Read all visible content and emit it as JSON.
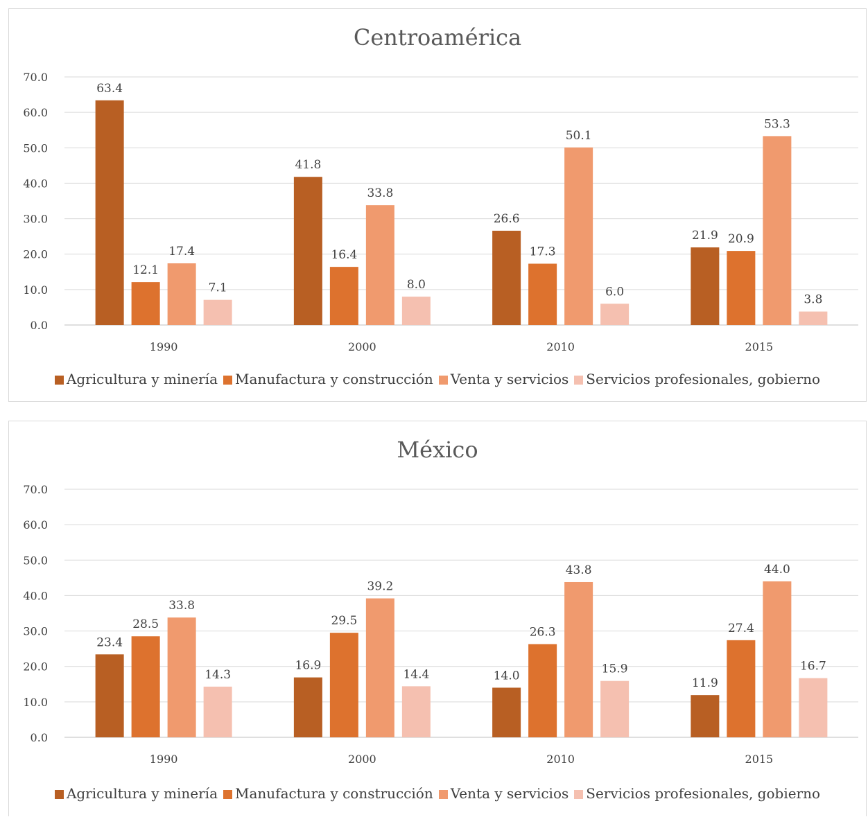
{
  "chart_data": [
    {
      "type": "bar",
      "title": "Centroamérica",
      "categories": [
        "1990",
        "2000",
        "2010",
        "2015"
      ],
      "series": [
        {
          "name": "Agricultura y minería",
          "color": "#b85f23",
          "values": [
            63.4,
            41.8,
            26.6,
            21.9
          ]
        },
        {
          "name": "Manufactura y construcción",
          "color": "#dd722e",
          "values": [
            12.1,
            16.4,
            17.3,
            20.9
          ]
        },
        {
          "name": "Venta y servicios",
          "color": "#f09a6e",
          "values": [
            17.4,
            33.8,
            50.1,
            53.3
          ]
        },
        {
          "name": "Servicios profesionales, gobierno",
          "color": "#f5c0b0",
          "values": [
            7.1,
            8.0,
            6.0,
            3.8
          ]
        }
      ],
      "y_ticks": [
        "0.0",
        "10.0",
        "20.0",
        "30.0",
        "40.0",
        "50.0",
        "60.0",
        "70.0"
      ],
      "ylim": [
        0,
        70
      ],
      "grid": true,
      "legend": "bottom"
    },
    {
      "type": "bar",
      "title": "México",
      "categories": [
        "1990",
        "2000",
        "2010",
        "2015"
      ],
      "series": [
        {
          "name": "Agricultura y minería",
          "color": "#b85f23",
          "values": [
            23.4,
            16.9,
            14.0,
            11.9
          ]
        },
        {
          "name": "Manufactura y construcción",
          "color": "#dd722e",
          "values": [
            28.5,
            29.5,
            26.3,
            27.4
          ]
        },
        {
          "name": "Venta y servicios",
          "color": "#f09a6e",
          "values": [
            33.8,
            39.2,
            43.8,
            44.0
          ]
        },
        {
          "name": "Servicios profesionales, gobierno",
          "color": "#f5c0b0",
          "values": [
            14.3,
            14.4,
            15.9,
            16.7
          ]
        }
      ],
      "y_ticks": [
        "0.0",
        "10.0",
        "20.0",
        "30.0",
        "40.0",
        "50.0",
        "60.0",
        "70.0"
      ],
      "ylim": [
        0,
        70
      ],
      "grid": true,
      "legend": "bottom"
    }
  ]
}
